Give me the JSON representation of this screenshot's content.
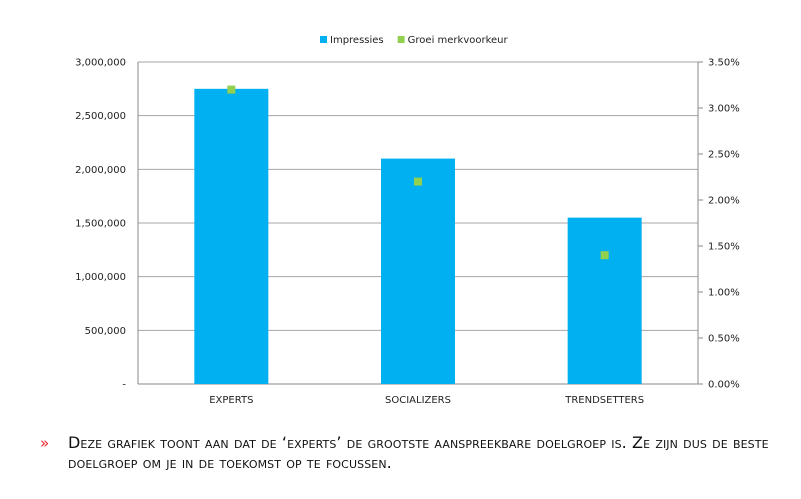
{
  "chart_data": {
    "type": "bar",
    "categories": [
      "EXPERTS",
      "SOCIALIZERS",
      "TRENDSETTERS"
    ],
    "series": [
      {
        "name": "Impressies",
        "kind": "bar",
        "axis": "left",
        "color": "#00b0f0",
        "values": [
          2750000,
          2100000,
          1550000
        ]
      },
      {
        "name": "Groei merkvoorkeur",
        "kind": "marker",
        "axis": "right",
        "color": "#92d050",
        "values": [
          0.032,
          0.022,
          0.014
        ]
      }
    ],
    "left_axis": {
      "ylim": [
        0,
        3000000
      ],
      "ticks": [
        0,
        500000,
        1000000,
        1500000,
        2000000,
        2500000,
        3000000
      ],
      "tick_labels": [
        "-",
        "500,000",
        "1,000,000",
        "1,500,000",
        "2,000,000",
        "2,500,000",
        "3,000,000"
      ]
    },
    "right_axis": {
      "ylim": [
        0,
        0.035
      ],
      "ticks": [
        0,
        0.005,
        0.01,
        0.015,
        0.02,
        0.025,
        0.03,
        0.035
      ],
      "tick_labels": [
        "0.00%",
        "0.50%",
        "1.00%",
        "1.50%",
        "2.00%",
        "2.50%",
        "3.00%",
        "3.50%"
      ]
    },
    "legend_position": "top",
    "grid": true
  },
  "note": {
    "bullet": "»",
    "text": "Deze grafiek toont aan dat de ‘experts’ de grootste aanspreekbare doelgroep is. Ze zijn dus de beste doelgroep om je in de toekomst op te focussen."
  }
}
